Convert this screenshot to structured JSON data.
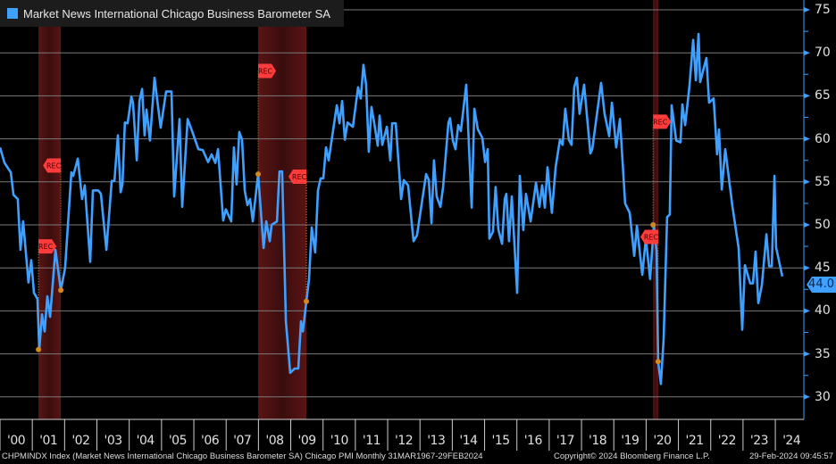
{
  "chart_data": {
    "type": "line",
    "title": "Market News International Chicago Business Barometer SA",
    "legend": [
      {
        "label": "Market News International Chicago Business Barometer SA",
        "color": "#3fa0ff"
      }
    ],
    "legend_position": "top-left",
    "x_unit": "months since Jan-2000",
    "x_range": [
      0,
      292
    ],
    "ylim": [
      27,
      76
    ],
    "y_axis_side": "right",
    "y_ticks": [
      30,
      35,
      40,
      45,
      50,
      55,
      60,
      65,
      70,
      75
    ],
    "x_tick_labels": [
      "'00",
      "'01",
      "'02",
      "'03",
      "'04",
      "'05",
      "'06",
      "'07",
      "'08",
      "'09",
      "'10",
      "'11",
      "'12",
      "'13",
      "'14",
      "'15",
      "'16",
      "'17",
      "'18",
      "'19",
      "'20",
      "'21",
      "'22",
      "'23",
      "'24"
    ],
    "grid": true,
    "last_value": "44.0",
    "series": [
      {
        "name": "Chicago Business Barometer SA",
        "color": "#3fa0ff",
        "points": [
          [
            0,
            59.0
          ],
          [
            1.7,
            57.2
          ],
          [
            4,
            56.1
          ],
          [
            5,
            53.5
          ],
          [
            6.6,
            53.0
          ],
          [
            7.6,
            47.1
          ],
          [
            8.6,
            50.4
          ],
          [
            10.6,
            43.3
          ],
          [
            11.6,
            45.9
          ],
          [
            12.6,
            42.1
          ],
          [
            13.9,
            41.4
          ],
          [
            14.6,
            35.5
          ],
          [
            15.6,
            39.6
          ],
          [
            16.6,
            37.6
          ],
          [
            17.6,
            41.7
          ],
          [
            18.6,
            39.3
          ],
          [
            20.6,
            47.1
          ],
          [
            22.6,
            42.4
          ],
          [
            24.2,
            45.0
          ],
          [
            26.5,
            56.1
          ],
          [
            27.2,
            55.7
          ],
          [
            28.9,
            57.7
          ],
          [
            30.5,
            53.0
          ],
          [
            31.5,
            54.6
          ],
          [
            33.5,
            45.7
          ],
          [
            34.5,
            54.0
          ],
          [
            36.5,
            54.0
          ],
          [
            37.5,
            53.6
          ],
          [
            39.5,
            47.1
          ],
          [
            41.5,
            55.1
          ],
          [
            42.5,
            55.1
          ],
          [
            43.8,
            60.4
          ],
          [
            44.8,
            53.8
          ],
          [
            45.5,
            54.7
          ],
          [
            46.4,
            61.9
          ],
          [
            47.4,
            61.8
          ],
          [
            48.8,
            64.9
          ],
          [
            49.4,
            64.2
          ],
          [
            50.8,
            57.5
          ],
          [
            51.8,
            64.4
          ],
          [
            52.8,
            65.8
          ],
          [
            53.7,
            60.4
          ],
          [
            54.4,
            63.4
          ],
          [
            55.7,
            59.8
          ],
          [
            57.4,
            67.1
          ],
          [
            59.7,
            61.3
          ],
          [
            61.7,
            65.5
          ],
          [
            63.7,
            65.5
          ],
          [
            64.7,
            53.3
          ],
          [
            66.7,
            62.3
          ],
          [
            67.7,
            52.1
          ],
          [
            69.7,
            62.3
          ],
          [
            71.7,
            60.6
          ],
          [
            73.7,
            58.8
          ],
          [
            75.3,
            58.7
          ],
          [
            77.3,
            57.3
          ],
          [
            78.6,
            58.2
          ],
          [
            80,
            57.2
          ],
          [
            81,
            58.8
          ],
          [
            82.9,
            50.5
          ],
          [
            83.9,
            51.8
          ],
          [
            85.9,
            50.4
          ],
          [
            86.9,
            59.0
          ],
          [
            87.9,
            54.7
          ],
          [
            88.9,
            60.8
          ],
          [
            89.9,
            59.9
          ],
          [
            90.9,
            54.0
          ],
          [
            91.9,
            52.3
          ],
          [
            92.9,
            53.0
          ],
          [
            93.9,
            50.4
          ],
          [
            95.9,
            55.9
          ],
          [
            97.9,
            47.3
          ],
          [
            98.9,
            50.4
          ],
          [
            100.2,
            48.1
          ],
          [
            100.9,
            50.0
          ],
          [
            102.9,
            50.4
          ],
          [
            103.8,
            56.2
          ],
          [
            104.8,
            56.2
          ],
          [
            106.2,
            38.8
          ],
          [
            107.8,
            32.8
          ],
          [
            109.5,
            33.3
          ],
          [
            110.8,
            33.3
          ],
          [
            111.8,
            38.8
          ],
          [
            112.5,
            37.6
          ],
          [
            113.8,
            41.1
          ],
          [
            114.8,
            43.7
          ],
          [
            115.8,
            49.7
          ],
          [
            117.1,
            46.8
          ],
          [
            118.1,
            54.0
          ],
          [
            119.1,
            55.4
          ],
          [
            120.1,
            55.4
          ],
          [
            121.1,
            59.0
          ],
          [
            122.1,
            57.5
          ],
          [
            125.1,
            63.9
          ],
          [
            126.1,
            61.8
          ],
          [
            127.1,
            64.4
          ],
          [
            128.1,
            59.9
          ],
          [
            129.1,
            61.9
          ],
          [
            131.1,
            61.4
          ],
          [
            133,
            66.0
          ],
          [
            134,
            64.7
          ],
          [
            135,
            68.6
          ],
          [
            136,
            66.3
          ],
          [
            137,
            58.5
          ],
          [
            138,
            63.7
          ],
          [
            139,
            61.9
          ],
          [
            140.3,
            59.2
          ],
          [
            141,
            62.7
          ],
          [
            142,
            59.3
          ],
          [
            143.7,
            61.4
          ],
          [
            145,
            57.5
          ],
          [
            145.7,
            61.8
          ],
          [
            147,
            61.8
          ],
          [
            149,
            53.0
          ],
          [
            150,
            55.2
          ],
          [
            151.6,
            54.6
          ],
          [
            153.6,
            48.1
          ],
          [
            154.9,
            48.8
          ],
          [
            158.3,
            55.9
          ],
          [
            159.3,
            55.2
          ],
          [
            160.3,
            50.2
          ],
          [
            161.2,
            57.5
          ],
          [
            162.2,
            53.3
          ],
          [
            163.6,
            52.1
          ],
          [
            164.6,
            54.4
          ],
          [
            166.6,
            61.9
          ],
          [
            167.2,
            62.4
          ],
          [
            168.2,
            59.8
          ],
          [
            169.2,
            58.8
          ],
          [
            170.2,
            61.6
          ],
          [
            171.2,
            60.9
          ],
          [
            173.2,
            66.3
          ],
          [
            175.2,
            52.0
          ],
          [
            176.2,
            63.5
          ],
          [
            177.5,
            61.1
          ],
          [
            179.2,
            60.1
          ],
          [
            180.2,
            57.3
          ],
          [
            181.2,
            58.8
          ],
          [
            181.8,
            48.4
          ],
          [
            183.1,
            49.2
          ],
          [
            184.1,
            54.4
          ],
          [
            185.1,
            49.5
          ],
          [
            186.5,
            47.8
          ],
          [
            187.5,
            53.0
          ],
          [
            188.1,
            53.6
          ],
          [
            189.1,
            48.1
          ],
          [
            190.1,
            53.3
          ],
          [
            192.1,
            42.1
          ],
          [
            193.1,
            55.7
          ],
          [
            194.4,
            49.4
          ],
          [
            195.4,
            53.6
          ],
          [
            197.1,
            50.4
          ],
          [
            199.1,
            54.9
          ],
          [
            200.4,
            52.1
          ],
          [
            201.4,
            54.6
          ],
          [
            202.4,
            52.0
          ],
          [
            203.4,
            56.7
          ],
          [
            205,
            51.4
          ],
          [
            206.4,
            56.7
          ],
          [
            208,
            59.9
          ],
          [
            209,
            59.3
          ],
          [
            210,
            63.5
          ],
          [
            211.3,
            59.9
          ],
          [
            212.3,
            59.3
          ],
          [
            213.3,
            66.0
          ],
          [
            214.3,
            67.1
          ],
          [
            215.3,
            62.9
          ],
          [
            217,
            66.3
          ],
          [
            219.3,
            58.3
          ],
          [
            220,
            58.8
          ],
          [
            223.3,
            66.5
          ],
          [
            224.6,
            62.9
          ],
          [
            226.3,
            60.3
          ],
          [
            227.3,
            64.2
          ],
          [
            228.9,
            59.0
          ],
          [
            230.3,
            62.3
          ],
          [
            232.2,
            52.5
          ],
          [
            233.9,
            51.4
          ],
          [
            235.6,
            46.4
          ],
          [
            236.6,
            49.9
          ],
          [
            238.6,
            44.2
          ],
          [
            239.9,
            48.4
          ],
          [
            241.5,
            43.7
          ],
          [
            242.9,
            50.0
          ],
          [
            243.9,
            46.9
          ],
          [
            244.5,
            34.1
          ],
          [
            245.5,
            31.5
          ],
          [
            246.5,
            36.7
          ],
          [
            247.8,
            50.9
          ],
          [
            248.8,
            51.2
          ],
          [
            249.5,
            63.9
          ],
          [
            251.2,
            59.8
          ],
          [
            252.8,
            59.6
          ],
          [
            253.5,
            64.0
          ],
          [
            254.5,
            61.6
          ],
          [
            256.1,
            66.1
          ],
          [
            257.5,
            71.5
          ],
          [
            258.5,
            66.8
          ],
          [
            259.5,
            72.2
          ],
          [
            260.1,
            66.6
          ],
          [
            262.4,
            69.4
          ],
          [
            263.4,
            64.2
          ],
          [
            265.1,
            64.7
          ],
          [
            266.4,
            58.2
          ],
          [
            267.1,
            61.1
          ],
          [
            268.1,
            54.1
          ],
          [
            269.4,
            58.8
          ],
          [
            272.1,
            52.1
          ],
          [
            274.4,
            47.3
          ],
          [
            275.7,
            37.8
          ],
          [
            276.7,
            45.3
          ],
          [
            278.7,
            43.2
          ],
          [
            279.7,
            43.2
          ],
          [
            280.7,
            46.9
          ],
          [
            281.7,
            40.9
          ],
          [
            283,
            43.0
          ],
          [
            284.7,
            48.9
          ],
          [
            285.7,
            45.2
          ],
          [
            286.7,
            45.2
          ],
          [
            287.7,
            55.7
          ],
          [
            288.3,
            47.4
          ],
          [
            290.6,
            44.0
          ]
        ]
      }
    ],
    "recessions": [
      {
        "start": 14.3,
        "end": 22.6,
        "start_value": 35.5,
        "end_value": 42.4,
        "label": "REC"
      },
      {
        "start": 95.9,
        "end": 113.8,
        "start_value": 55.9,
        "end_value": 41.1,
        "label": "REC"
      },
      {
        "start": 242.6,
        "end": 244.5,
        "start_value": 50.0,
        "end_value": 34.1,
        "label": "REC"
      }
    ]
  },
  "footer": {
    "source": "CHPMINDX Index (Market News International Chicago Business Barometer SA) Chicago PMI  Monthly 31MAR1967-29FEB2024",
    "copyright": "Copyright© 2024 Bloomberg Finance L.P.",
    "timestamp": "29-Feb-2024 09:45:57"
  }
}
